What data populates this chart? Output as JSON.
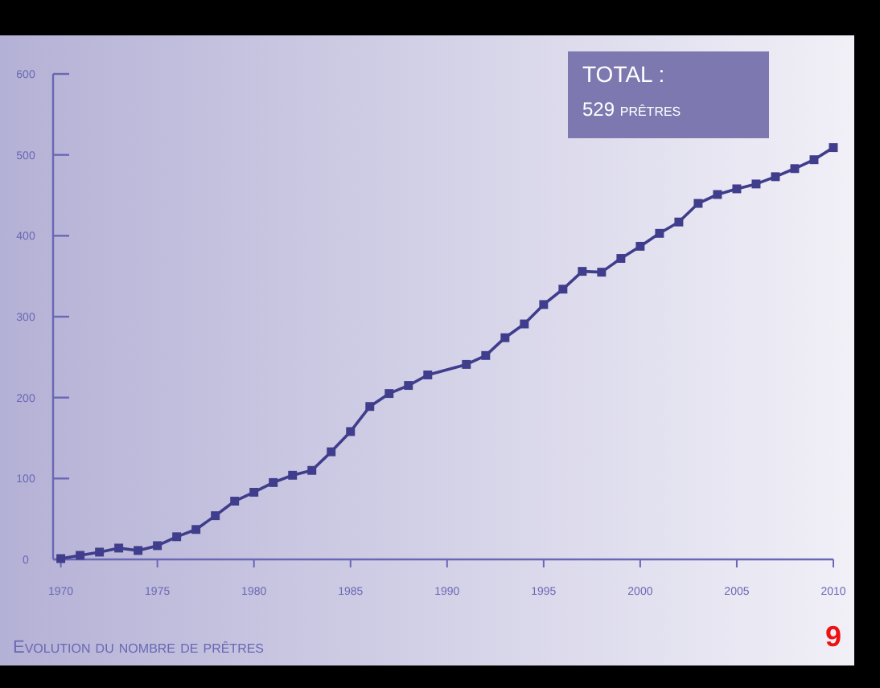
{
  "chart_data": {
    "type": "line",
    "title": "Evolution du nombre de prêtres",
    "annotations": [
      "TOTAL :",
      "529 prêtres",
      "9"
    ],
    "x": [
      1970,
      1971,
      1972,
      1973,
      1974,
      1975,
      1976,
      1977,
      1978,
      1979,
      1980,
      1981,
      1982,
      1983,
      1984,
      1985,
      1986,
      1987,
      1988,
      1989,
      1991,
      1992,
      1993,
      1994,
      1995,
      1996,
      1997,
      1998,
      1999,
      2000,
      2001,
      2002,
      2003,
      2004,
      2005,
      2006,
      2007,
      2008,
      2009,
      2010
    ],
    "series": [
      {
        "color": "#3f3d8c",
        "values": [
          1,
          5,
          9,
          14,
          11,
          17,
          28,
          37,
          54,
          72,
          83,
          95,
          104,
          110,
          133,
          158,
          189,
          205,
          215,
          228,
          241,
          252,
          274,
          291,
          315,
          334,
          356,
          355,
          372,
          387,
          403,
          417,
          440,
          451,
          458,
          464,
          473,
          483,
          494,
          509
        ]
      }
    ],
    "xlim": [
      1969.6,
      2010
    ],
    "xticks": [
      1970,
      1975,
      1980,
      1985,
      1990,
      1995,
      2000,
      2005,
      2010
    ],
    "ylim": [
      0,
      600
    ],
    "yticks": [
      0,
      100,
      200,
      300,
      400,
      500,
      600
    ],
    "marker": "square",
    "grid": false
  }
}
